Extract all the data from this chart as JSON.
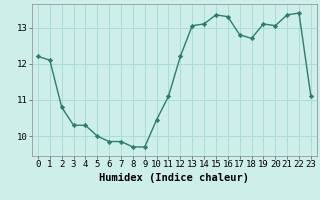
{
  "x": [
    0,
    1,
    2,
    3,
    4,
    5,
    6,
    7,
    8,
    9,
    10,
    11,
    12,
    13,
    14,
    15,
    16,
    17,
    18,
    19,
    20,
    21,
    22,
    23
  ],
  "y": [
    12.2,
    12.1,
    10.8,
    10.3,
    10.3,
    10.0,
    9.85,
    9.85,
    9.7,
    9.7,
    10.45,
    11.1,
    12.2,
    13.05,
    13.1,
    13.35,
    13.3,
    12.8,
    12.7,
    13.1,
    13.05,
    13.35,
    13.4,
    11.1
  ],
  "line_color": "#2d7d6e",
  "marker": "D",
  "marker_size": 2.2,
  "bg_color": "#ceeee9",
  "grid_color": "#aaddd8",
  "ylim": [
    9.45,
    13.65
  ],
  "yticks": [
    10,
    11,
    12,
    13
  ],
  "xlim": [
    -0.5,
    23.5
  ],
  "xlabel": "Humidex (Indice chaleur)",
  "xlabel_fontsize": 7.5,
  "tick_fontsize": 6.5,
  "linewidth": 1.0
}
